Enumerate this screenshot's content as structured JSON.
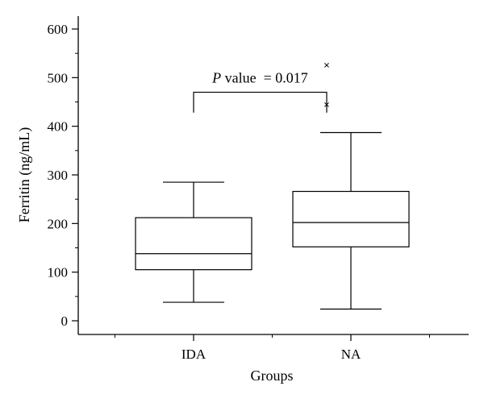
{
  "chart_data": {
    "type": "boxplot",
    "title": "",
    "xlabel": "Groups",
    "ylabel": "Ferritin (ng/mL)",
    "ylim": [
      0,
      600
    ],
    "yticks": [
      0,
      100,
      200,
      300,
      400,
      500,
      600
    ],
    "categories": [
      "IDA",
      "NA"
    ],
    "boxes": [
      {
        "category": "IDA",
        "whisker_low": 38,
        "q1": 105,
        "median": 138,
        "q3": 212,
        "whisker_high": 285,
        "outliers": []
      },
      {
        "category": "NA",
        "whisker_low": 24,
        "q1": 152,
        "median": 202,
        "q3": 266,
        "whisker_high": 387,
        "outliers": [
          445,
          526
        ]
      }
    ],
    "annotation": {
      "italic_part": "P",
      "rest": " value  = 0.017",
      "bracket_y": 470,
      "bracket_drop_to": 428
    },
    "grid": false,
    "outlier_marker": "×",
    "colors": {
      "stroke": "#000000",
      "background": "#ffffff"
    }
  }
}
